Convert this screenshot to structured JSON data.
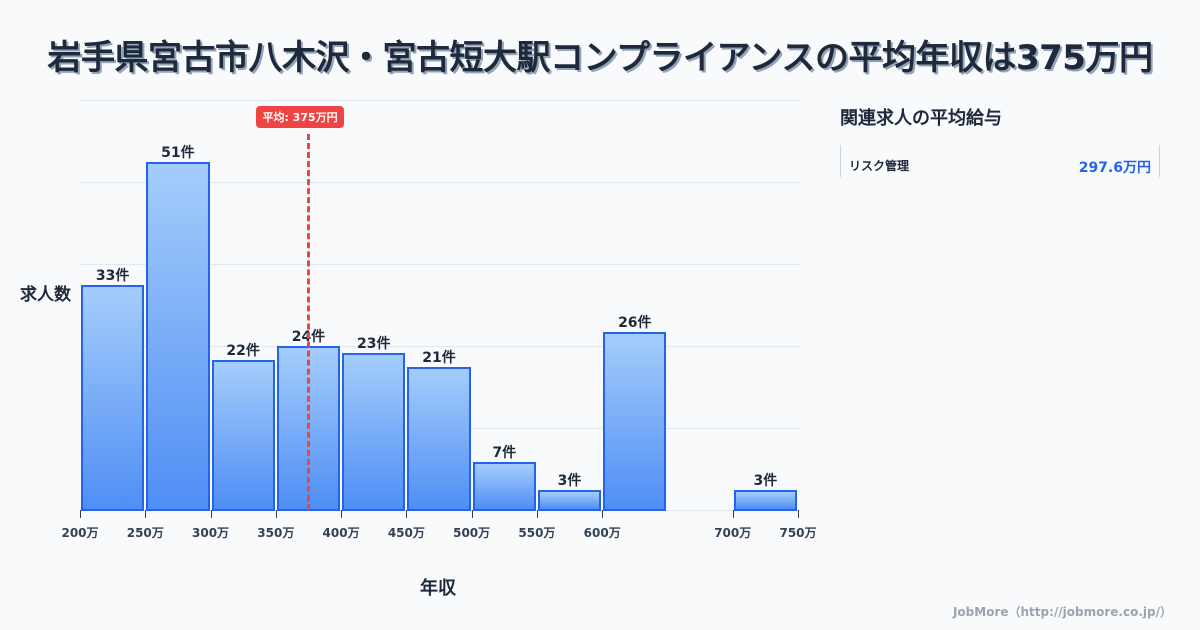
{
  "title": "岩手県宮古市八木沢・宮古短大駅コンプライアンスの平均年収は375万円",
  "chart_data": {
    "type": "bar",
    "title": "岩手県宮古市八木沢・宮古短大駅コンプライアンスの平均年収は375万円",
    "xlabel": "年収",
    "ylabel": "求人数",
    "categories": [
      "200-250万",
      "250-300万",
      "300-350万",
      "350-400万",
      "400-450万",
      "450-500万",
      "500-550万",
      "550-600万",
      "600-650万",
      "700-750万"
    ],
    "bins": [
      [
        200,
        250
      ],
      [
        250,
        300
      ],
      [
        300,
        350
      ],
      [
        350,
        400
      ],
      [
        400,
        450
      ],
      [
        450,
        500
      ],
      [
        500,
        550
      ],
      [
        550,
        600
      ],
      [
        600,
        650
      ],
      [
        700,
        750
      ]
    ],
    "values": [
      33,
      51,
      22,
      24,
      23,
      21,
      7,
      3,
      26,
      3
    ],
    "value_labels": [
      "33件",
      "51件",
      "22件",
      "24件",
      "23件",
      "21件",
      "7件",
      "3件",
      "26件",
      "3件"
    ],
    "x_ticks": [
      "200万",
      "250万",
      "300万",
      "350万",
      "400万",
      "450万",
      "500万",
      "550万",
      "600万",
      "700万",
      "750万"
    ],
    "x_tick_values": [
      200,
      250,
      300,
      350,
      400,
      450,
      500,
      550,
      600,
      700,
      750
    ],
    "xlim": [
      200,
      750
    ],
    "ylim": [
      0,
      60
    ],
    "grid": true,
    "average": {
      "value": 375,
      "label": "平均: 375万円",
      "color": "#ef4444"
    },
    "bar_color": "#2563eb"
  },
  "side_panel": {
    "title": "関連求人の平均給与",
    "items": [
      {
        "name": "リスク管理",
        "value": "297.6万円"
      }
    ]
  },
  "footer": "JobMore（http://jobmore.co.jp/）"
}
